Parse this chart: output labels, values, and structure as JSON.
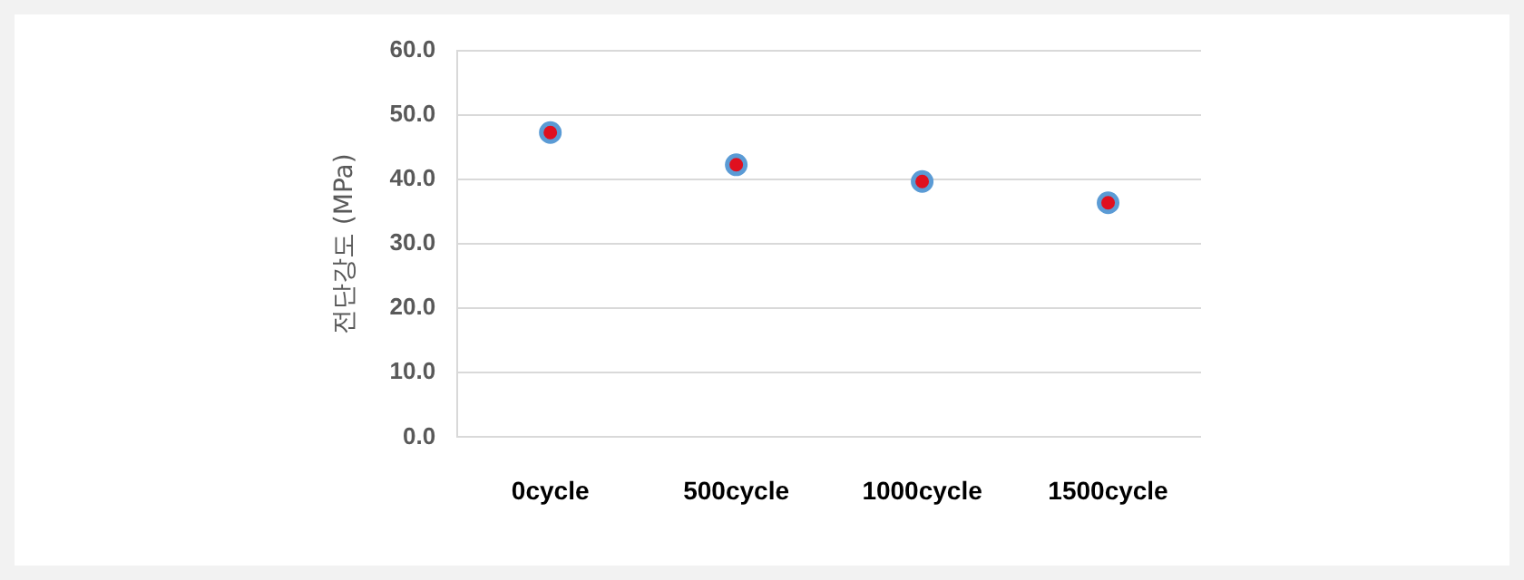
{
  "chart_data": {
    "type": "scatter",
    "ylabel": "전단강도 (MPa)",
    "categories": [
      "0cycle",
      "500cycle",
      "1000cycle",
      "1500cycle"
    ],
    "series": [
      {
        "color": "#5b9bd5",
        "values": [
          47.3,
          42.3,
          39.7,
          36.4
        ]
      }
    ],
    "ylim": [
      0,
      60
    ],
    "yticks": [
      {
        "value": 0,
        "label": "0.0"
      },
      {
        "value": 10,
        "label": "10.0"
      },
      {
        "value": 20,
        "label": "20.0"
      },
      {
        "value": 30,
        "label": "30.0"
      },
      {
        "value": 40,
        "label": "40.0"
      },
      {
        "value": 50,
        "label": "50.0"
      },
      {
        "value": 60,
        "label": "60.0"
      }
    ],
    "grid": "y",
    "marker": "circle",
    "legend": false
  }
}
